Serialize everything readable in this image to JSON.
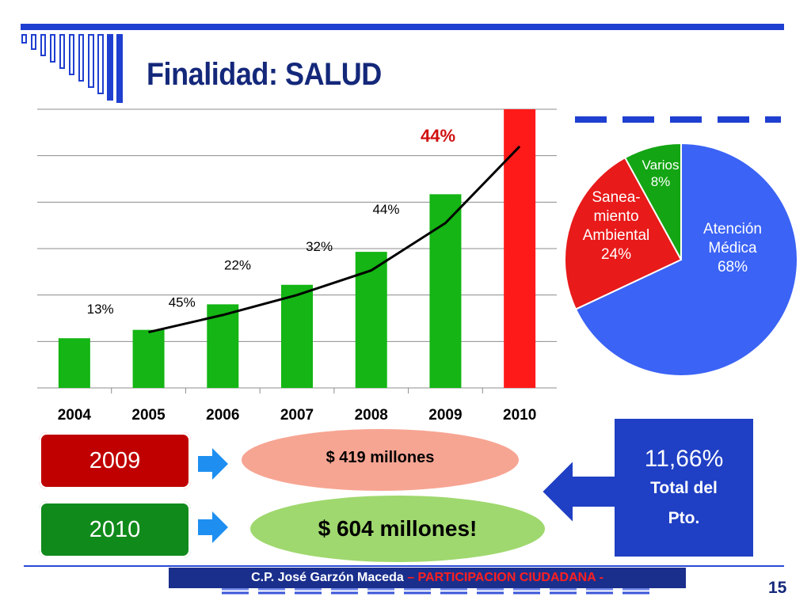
{
  "slide": {
    "title": "Finalidad: SALUD",
    "page_number": "15",
    "footer": {
      "author": "C.P. José Garzón Maceda",
      "separator": " – ",
      "tagline": "PARTICIPACION CIUDADANA -"
    }
  },
  "colors": {
    "accent_blue": "#1f3fd0",
    "title_navy": "#14287a",
    "bar_green": "#14b514",
    "bar_red": "#ff1a1a",
    "pie_blue": "#3b63f5",
    "pie_red": "#e81a1a",
    "pie_green": "#14a514"
  },
  "chart_data": [
    {
      "type": "bar",
      "categories": [
        "2004",
        "2005",
        "2006",
        "2007",
        "2008",
        "2009",
        "2010"
      ],
      "values": [
        1.07,
        1.25,
        1.8,
        2.22,
        2.93,
        4.17,
        6.0
      ],
      "trend_line": [
        null,
        1.2,
        1.57,
        2.0,
        2.53,
        3.55,
        5.2
      ],
      "bar_colors": [
        "green",
        "green",
        "green",
        "green",
        "green",
        "green",
        "red"
      ],
      "value_labels": [
        "13%",
        "45%",
        "22%",
        "32%",
        "44%",
        "44%",
        null
      ],
      "ylim": [
        0,
        6
      ],
      "grid": true
    },
    {
      "type": "pie",
      "slices": [
        {
          "label_lines": [
            "Atención",
            "Médica",
            "68%"
          ],
          "value": 68,
          "color": "blue"
        },
        {
          "label_lines": [
            "Sanea-",
            "miento",
            "Ambiental",
            "24%"
          ],
          "value": 24,
          "color": "red"
        },
        {
          "label_lines": [
            "Varios",
            "8%"
          ],
          "value": 8,
          "color": "green"
        }
      ]
    }
  ],
  "budget": {
    "rows": [
      {
        "year": "2009",
        "amount": "$ 419 millones"
      },
      {
        "year": "2010",
        "amount": "$ 604 millones!"
      }
    ],
    "share": {
      "percent": "11,66%",
      "label_line1": "Total del",
      "label_line2": "Pto."
    }
  }
}
